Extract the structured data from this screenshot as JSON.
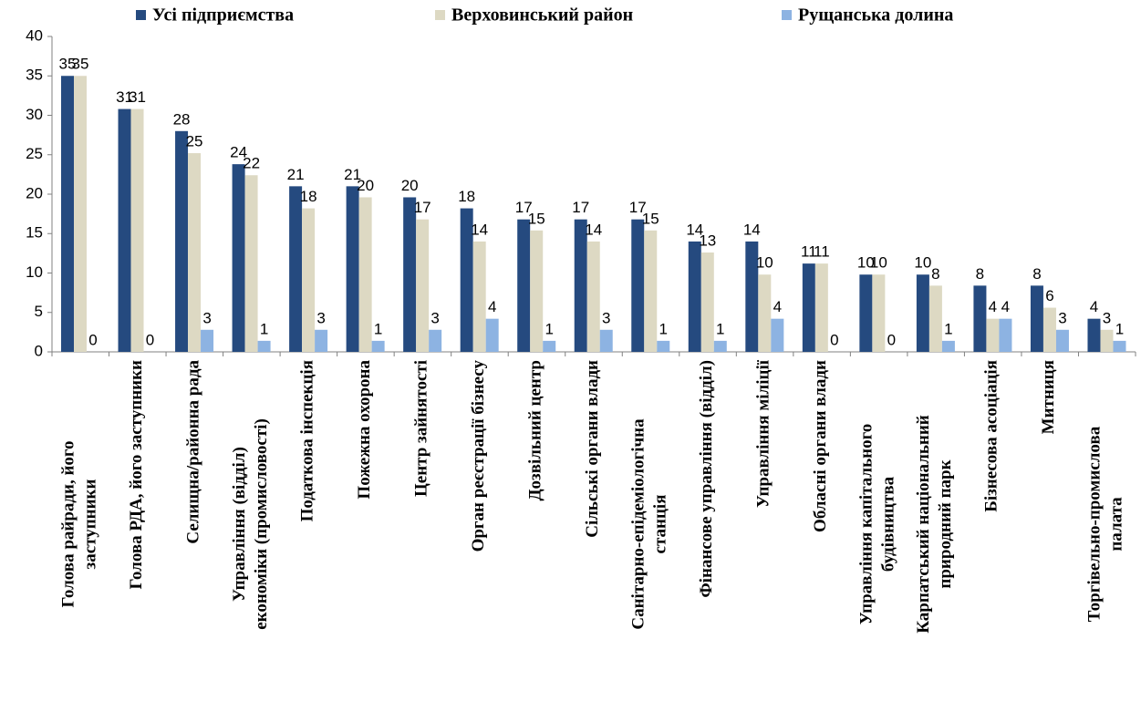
{
  "chart_data": {
    "type": "bar",
    "categories": [
      "Голова райради, його\nзаступники",
      "Голова РДА, його заступники",
      "Селищна/районна рада",
      "Управління (відділ)\nекономіки (промисловості)",
      "Податкова інспекція",
      "Пожежна охорона",
      "Центр зайнятості",
      "Орган реєстрації бізнесу",
      "Дозвільний центр",
      "Сільські органи влади",
      "Санітарно-епідеміологічна\nстанція",
      "Фінансове управління (відділ)",
      "Управління міліції",
      "Обласні органи влади",
      "Управління капітального\nбудівництва",
      "Карпатський національний\nприродний парк",
      "Бізнесова асоціація",
      "Митниця",
      "Торгівельно-промислова\nпалата"
    ],
    "series": [
      {
        "name": "Усі підприємства",
        "color": "#254a7f",
        "values": [
          35,
          30.8,
          28,
          23.8,
          21,
          21,
          19.6,
          18.2,
          16.8,
          16.8,
          16.8,
          14,
          14,
          11.2,
          9.8,
          9.8,
          8.4,
          8.4,
          4.2
        ],
        "value_labels": [
          "35",
          "31",
          "28",
          "24",
          "21",
          "21",
          "20",
          "18",
          "17",
          "17",
          "17",
          "14",
          "14",
          "11",
          "10",
          "10",
          "8",
          "8",
          "4"
        ]
      },
      {
        "name": "Верховинський район",
        "color": "#ddd9c3",
        "values": [
          35,
          30.8,
          25.2,
          22.4,
          18.2,
          19.6,
          16.8,
          14,
          15.4,
          14,
          15.4,
          12.6,
          9.8,
          11.2,
          9.8,
          8.4,
          4.2,
          5.6,
          2.8
        ],
        "value_labels": [
          "35",
          "31",
          "25",
          "22",
          "18",
          "20",
          "17",
          "14",
          "15",
          "14",
          "15",
          "13",
          "10",
          "11",
          "10",
          "8",
          "4",
          "6",
          "3"
        ]
      },
      {
        "name": "Рущанська долина",
        "color": "#8db3e2",
        "values": [
          0,
          0,
          2.8,
          1.4,
          2.8,
          1.4,
          2.8,
          4.2,
          1.4,
          2.8,
          1.4,
          1.4,
          4.2,
          0,
          0,
          1.4,
          4.2,
          2.8,
          1.4
        ],
        "value_labels": [
          "0",
          "0",
          "3",
          "1",
          "3",
          "1",
          "3",
          "4",
          "1",
          "3",
          "1",
          "1",
          "4",
          "0",
          "0",
          "1",
          "4",
          "3",
          "1"
        ]
      }
    ],
    "ylim": [
      0,
      40
    ],
    "yticks": [
      0,
      5,
      10,
      15,
      20,
      25,
      30,
      35,
      40
    ],
    "legend": "top"
  }
}
